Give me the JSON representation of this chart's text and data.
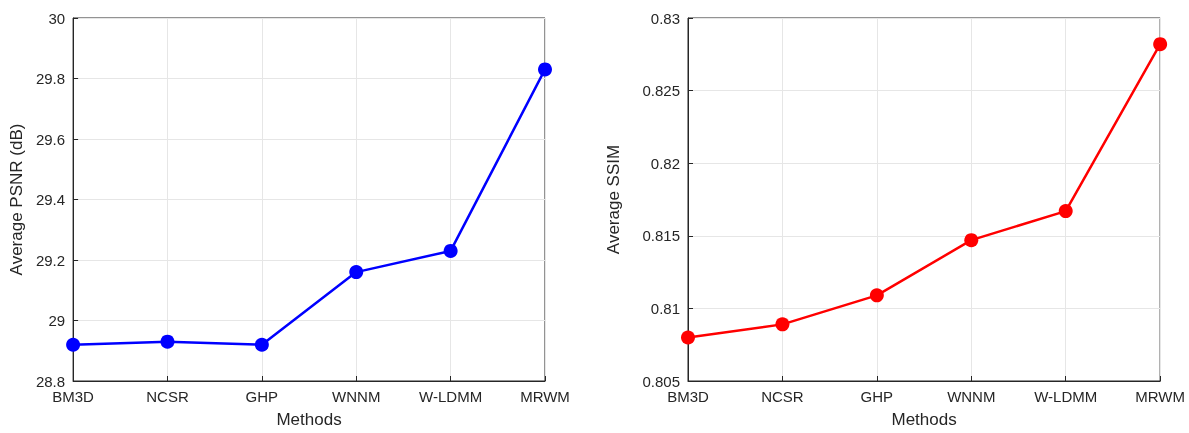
{
  "chart_data": [
    {
      "type": "line",
      "xlabel": "Methods",
      "ylabel": "Average PSNR (dB)",
      "categories": [
        "BM3D",
        "NCSR",
        "GHP",
        "WNNM",
        "W-LDMM",
        "MRWM"
      ],
      "series": [
        {
          "color": "#0000ff",
          "values": [
            28.92,
            28.93,
            28.92,
            29.16,
            29.23,
            29.83
          ]
        }
      ],
      "ylim": [
        28.8,
        30
      ],
      "yticks": [
        28.8,
        29,
        29.2,
        29.4,
        29.6,
        29.8,
        30
      ],
      "grid": true,
      "marker": "circle",
      "line_style": "solid"
    },
    {
      "type": "line",
      "xlabel": "Methods",
      "ylabel": "Average SSIM",
      "categories": [
        "BM3D",
        "NCSR",
        "GHP",
        "WNNM",
        "W-LDMM",
        "MRWM"
      ],
      "series": [
        {
          "color": "#ff0000",
          "values": [
            0.808,
            0.8089,
            0.8109,
            0.8147,
            0.8167,
            0.8282
          ]
        }
      ],
      "ylim": [
        0.805,
        0.83
      ],
      "yticks": [
        0.805,
        0.81,
        0.815,
        0.82,
        0.825,
        0.83
      ],
      "grid": true,
      "marker": "circle",
      "line_style": "solid"
    }
  ]
}
